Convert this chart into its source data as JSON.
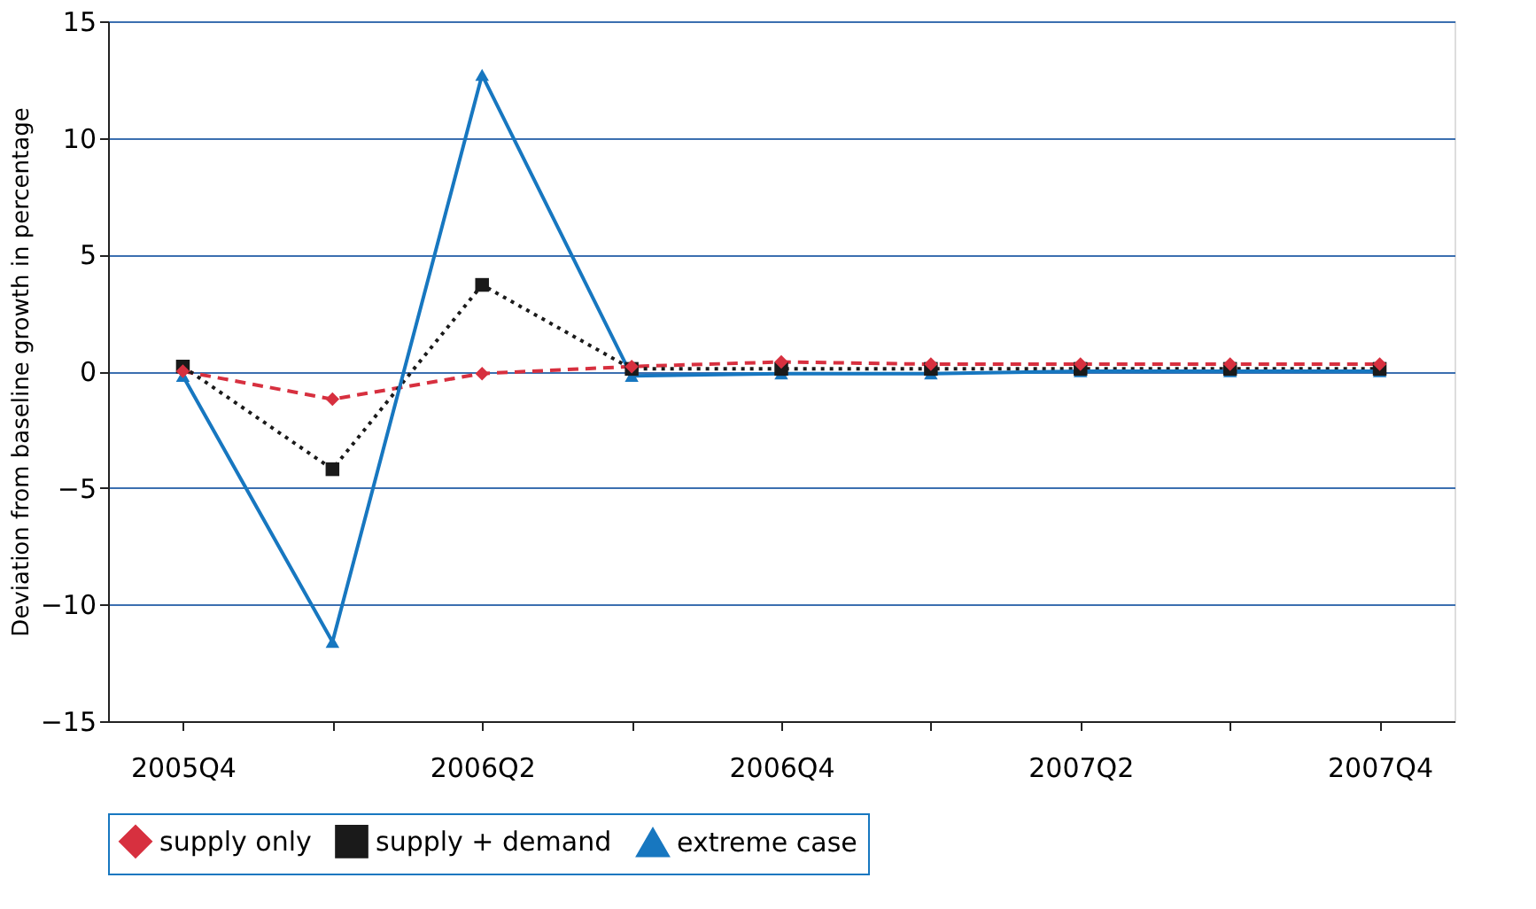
{
  "chart_data": {
    "type": "line",
    "ylabel": "Deviation from baseline growth in percentage",
    "categories": [
      "2005Q4",
      null,
      "2006Q2",
      null,
      "2006Q4",
      null,
      "2007Q2",
      null,
      "2007Q4"
    ],
    "series": [
      {
        "name": "supply only",
        "color": "#d7303f",
        "marker": "diamond",
        "line_style": "dashed",
        "values": [
          0,
          -1.2,
          -0.1,
          0.2,
          0.4,
          0.3,
          0.3,
          0.3,
          0.3
        ]
      },
      {
        "name": "supply + demand",
        "color": "#1a1a1a",
        "marker": "square",
        "line_style": "dotted",
        "values": [
          0.2,
          -4.2,
          3.7,
          0.1,
          0.1,
          0.1,
          0.1,
          0.1,
          0.1
        ]
      },
      {
        "name": "extreme case",
        "color": "#1777c0",
        "marker": "triangle",
        "line_style": "solid",
        "values": [
          -0.2,
          -11.6,
          12.7,
          -0.2,
          -0.1,
          -0.1,
          0,
          0,
          0
        ]
      }
    ],
    "ylim": [
      -15,
      15
    ],
    "yticks": [
      -15,
      -10,
      -5,
      0,
      5,
      10,
      15
    ],
    "grid": "y",
    "legend": "bottom"
  }
}
